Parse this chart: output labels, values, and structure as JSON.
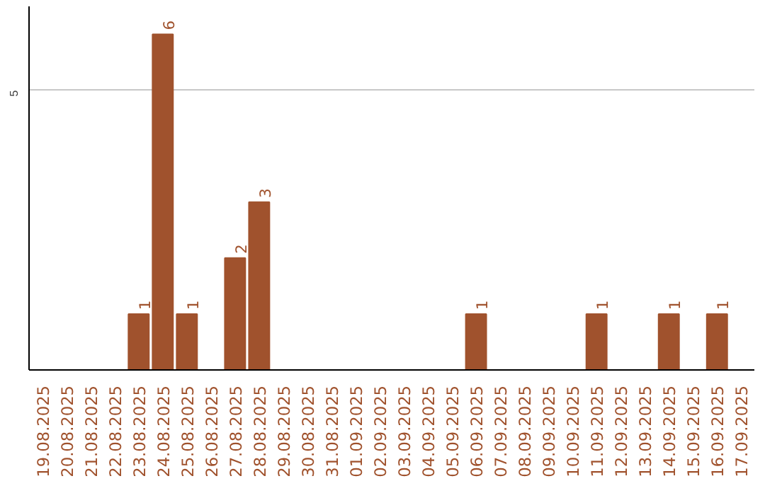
{
  "chart_data": {
    "type": "bar",
    "categories": [
      "19.08.2025",
      "20.08.2025",
      "21.08.2025",
      "22.08.2025",
      "23.08.2025",
      "24.08.2025",
      "25.08.2025",
      "26.08.2025",
      "27.08.2025",
      "28.08.2025",
      "29.08.2025",
      "30.08.2025",
      "31.08.2025",
      "01.09.2025",
      "02.09.2025",
      "03.09.2025",
      "04.09.2025",
      "05.09.2025",
      "06.09.2025",
      "07.09.2025",
      "08.09.2025",
      "09.09.2025",
      "10.09.2025",
      "11.09.2025",
      "12.09.2025",
      "13.09.2025",
      "14.09.2025",
      "15.09.2025",
      "16.09.2025",
      "17.09.2025"
    ],
    "values": [
      0,
      0,
      0,
      0,
      1,
      6,
      1,
      0,
      2,
      3,
      0,
      0,
      0,
      0,
      0,
      0,
      0,
      0,
      1,
      0,
      0,
      0,
      0,
      1,
      0,
      0,
      1,
      0,
      1,
      0
    ],
    "value_labels": [
      null,
      null,
      null,
      null,
      "1",
      "6",
      "1",
      null,
      "2",
      "3",
      null,
      null,
      null,
      null,
      null,
      null,
      null,
      null,
      "1",
      null,
      null,
      null,
      null,
      "1",
      null,
      null,
      "1",
      null,
      "1",
      null
    ],
    "color": "#a0522d",
    "ylim": [
      0,
      6.5
    ],
    "yticks": [
      5
    ],
    "grid": "y"
  }
}
